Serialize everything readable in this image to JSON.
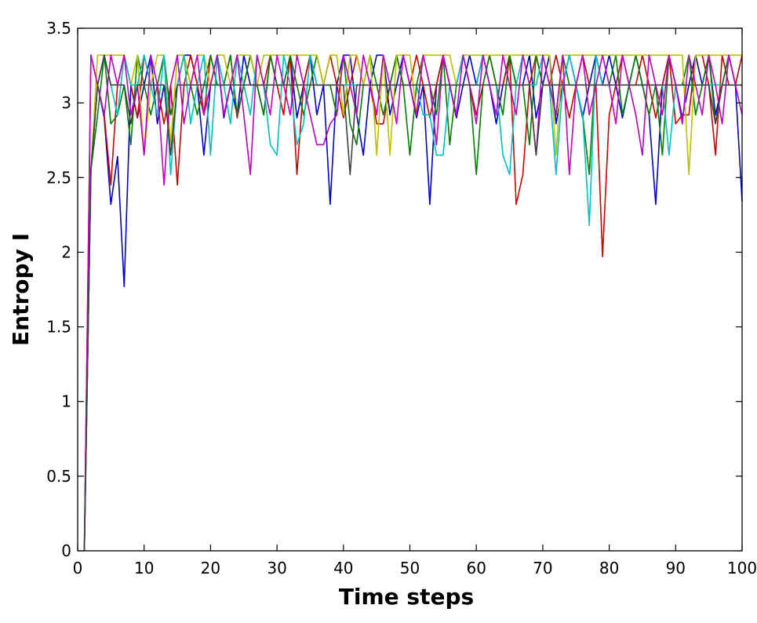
{
  "chart_data": {
    "type": "line",
    "title": "",
    "xlabel": "Time steps",
    "ylabel": "Entropy I",
    "xlim": [
      0,
      100
    ],
    "ylim": [
      0,
      3.5
    ],
    "xticks": [
      "0",
      "10",
      "20",
      "30",
      "40",
      "50",
      "60",
      "70",
      "80",
      "90",
      "100"
    ],
    "yticks": [
      "0",
      "0.5",
      "1",
      "1.5",
      "2",
      "2.5",
      "3",
      "3.5"
    ],
    "grid": false,
    "legend": "none",
    "x": [
      1,
      2,
      3,
      4,
      5,
      6,
      7,
      8,
      9,
      10,
      11,
      12,
      13,
      14,
      15,
      16,
      17,
      18,
      19,
      20,
      21,
      22,
      23,
      24,
      25,
      26,
      27,
      28,
      29,
      30,
      31,
      32,
      33,
      34,
      35,
      36,
      37,
      38,
      39,
      40,
      41,
      42,
      43,
      44,
      45,
      46,
      47,
      48,
      49,
      50,
      51,
      52,
      53,
      54,
      55,
      56,
      57,
      58,
      59,
      60,
      61,
      62,
      63,
      64,
      65,
      66,
      67,
      68,
      69,
      70,
      71,
      72,
      73,
      74,
      75,
      76,
      77,
      78,
      79,
      80,
      81,
      82,
      83,
      84,
      85,
      86,
      87,
      88,
      89,
      90,
      91,
      92,
      93,
      94,
      95,
      96,
      97,
      98,
      99,
      100
    ],
    "series": [
      {
        "color": "#0000cc",
        "values": [
          0,
          2.55,
          3.12,
          2.9,
          2.32,
          2.64,
          1.77,
          3.12,
          2.9,
          3.12,
          3.32,
          2.86,
          3.12,
          2.92,
          3.12,
          3.32,
          3.32,
          3.12,
          2.65,
          3.12,
          3.32,
          2.9,
          3.12,
          2.92,
          3.32,
          3.12,
          3.12,
          2.92,
          3.32,
          3.12,
          3.12,
          3.32,
          2.9,
          3.12,
          3.32,
          2.92,
          3.12,
          2.32,
          3.12,
          3.32,
          3.32,
          2.92,
          2.65,
          3.12,
          3.32,
          3.32,
          2.92,
          3.12,
          3.32,
          3.12,
          2.9,
          3.12,
          2.32,
          3.12,
          3.32,
          3.12,
          2.9,
          3.12,
          3.32,
          3.12,
          3.32,
          3.12,
          2.86,
          3.12,
          3.32,
          3.12,
          3.12,
          3.32,
          2.9,
          3.12,
          3.32,
          2.86,
          3.12,
          3.32,
          3.12,
          2.9,
          3.12,
          3.32,
          3.12,
          3.32,
          3.12,
          2.9,
          3.12,
          3.32,
          3.12,
          2.92,
          2.32,
          3.12,
          3.32,
          3.12,
          2.9,
          3.12,
          3.32,
          3.12,
          3.32,
          2.92,
          3.12,
          3.32,
          3.12,
          2.34
        ]
      },
      {
        "color": "#cc0000",
        "values": [
          0,
          3.32,
          3.12,
          2.92,
          2.45,
          3.12,
          3.32,
          3.12,
          2.9,
          3.32,
          3.12,
          3.12,
          2.86,
          3.12,
          2.45,
          3.12,
          3.32,
          3.12,
          2.92,
          3.32,
          3.12,
          3.12,
          3.32,
          2.9,
          3.12,
          3.32,
          3.12,
          3.12,
          3.32,
          3.12,
          2.92,
          3.32,
          2.52,
          3.12,
          3.32,
          3.12,
          3.12,
          3.32,
          3.12,
          2.9,
          3.12,
          3.32,
          3.12,
          3.12,
          2.86,
          2.86,
          3.12,
          3.32,
          3.12,
          3.12,
          3.32,
          3.12,
          2.9,
          3.12,
          3.32,
          3.12,
          3.12,
          3.32,
          3.12,
          2.92,
          3.12,
          3.32,
          3.12,
          3.12,
          3.32,
          2.32,
          2.52,
          3.12,
          3.32,
          3.12,
          3.12,
          3.32,
          3.12,
          2.9,
          3.12,
          3.32,
          3.12,
          3.12,
          1.97,
          2.92,
          3.12,
          3.32,
          3.12,
          3.12,
          3.32,
          3.12,
          2.9,
          3.12,
          3.32,
          2.86,
          2.92,
          2.92,
          3.32,
          3.32,
          3.12,
          2.65,
          3.32,
          3.12,
          3.12,
          3.32
        ]
      },
      {
        "color": "#007f00",
        "values": [
          0,
          2.55,
          2.92,
          3.32,
          2.86,
          2.92,
          3.12,
          2.72,
          3.32,
          3.12,
          2.92,
          3.12,
          3.32,
          2.92,
          3.12,
          3.32,
          3.12,
          2.92,
          3.12,
          3.32,
          3.12,
          3.12,
          3.32,
          2.92,
          3.12,
          3.32,
          3.12,
          2.92,
          3.32,
          3.12,
          3.12,
          3.32,
          3.12,
          2.92,
          3.12,
          3.32,
          3.12,
          3.12,
          2.92,
          3.32,
          2.86,
          2.72,
          3.12,
          3.32,
          3.12,
          2.92,
          3.12,
          3.32,
          3.12,
          2.65,
          3.12,
          3.32,
          3.12,
          2.92,
          3.32,
          2.72,
          3.12,
          3.32,
          3.12,
          2.52,
          3.12,
          3.32,
          3.12,
          2.92,
          3.32,
          3.12,
          3.12,
          2.72,
          3.32,
          3.12,
          3.12,
          2.92,
          3.32,
          3.12,
          3.12,
          2.92,
          2.52,
          3.32,
          3.12,
          3.12,
          3.32,
          2.92,
          3.12,
          3.32,
          3.12,
          2.92,
          3.12,
          2.65,
          3.32,
          3.12,
          3.12,
          3.32,
          2.92,
          3.12,
          3.32,
          2.86,
          3.12,
          3.32,
          3.12,
          3.12
        ]
      },
      {
        "color": "#bfbf00",
        "values": [
          0,
          2.55,
          3.32,
          3.32,
          3.32,
          3.32,
          3.32,
          3.12,
          3.32,
          2.65,
          3.12,
          3.32,
          3.32,
          2.72,
          3.32,
          3.32,
          3.12,
          3.32,
          3.32,
          3.12,
          3.32,
          3.32,
          3.12,
          3.32,
          3.32,
          3.32,
          3.12,
          3.32,
          3.32,
          3.32,
          3.32,
          3.32,
          3.32,
          3.32,
          3.32,
          3.32,
          3.12,
          3.32,
          3.32,
          2.92,
          3.32,
          3.32,
          3.12,
          3.32,
          2.65,
          3.32,
          2.65,
          3.32,
          3.32,
          3.32,
          2.92,
          3.32,
          3.32,
          3.32,
          3.32,
          3.32,
          3.12,
          3.32,
          3.32,
          3.32,
          3.32,
          3.32,
          3.32,
          3.32,
          3.32,
          3.32,
          3.32,
          3.32,
          3.32,
          3.32,
          3.32,
          2.65,
          3.32,
          3.32,
          3.32,
          3.32,
          3.32,
          3.32,
          3.32,
          3.32,
          3.32,
          3.32,
          3.32,
          3.32,
          3.32,
          3.32,
          3.32,
          3.32,
          3.32,
          3.32,
          3.32,
          2.52,
          3.32,
          3.32,
          3.32,
          3.32,
          3.32,
          3.32,
          3.32,
          3.32
        ]
      },
      {
        "color": "#00bfbf",
        "values": [
          0,
          2.55,
          3.12,
          3.32,
          3.12,
          2.92,
          3.32,
          3.12,
          3.12,
          3.32,
          3.12,
          2.92,
          3.32,
          2.52,
          3.12,
          3.32,
          2.86,
          3.12,
          3.32,
          2.65,
          3.32,
          3.12,
          2.86,
          3.32,
          3.12,
          2.92,
          3.32,
          3.12,
          2.72,
          2.65,
          3.32,
          3.12,
          2.72,
          2.86,
          3.32,
          3.12,
          3.12,
          3.12,
          3.12,
          3.12,
          3.12,
          3.12,
          3.12,
          3.12,
          3.12,
          3.12,
          3.12,
          3.12,
          3.12,
          3.12,
          3.12,
          2.92,
          2.92,
          2.65,
          2.65,
          3.12,
          3.12,
          3.32,
          3.12,
          3.12,
          3.32,
          3.12,
          3.12,
          2.65,
          2.52,
          3.12,
          3.32,
          3.12,
          3.12,
          3.32,
          3.12,
          2.52,
          3.12,
          3.32,
          3.12,
          2.92,
          2.18,
          3.32,
          3.12,
          3.12,
          3.12,
          3.12,
          3.12,
          3.12,
          3.12,
          3.12,
          3.12,
          3.12,
          2.65,
          3.12,
          3.12,
          3.12,
          3.12,
          3.12,
          3.12,
          3.12,
          3.12,
          3.12,
          3.12,
          3.12
        ]
      },
      {
        "color": "#bf00bf",
        "values": [
          0,
          3.32,
          3.12,
          2.92,
          3.32,
          3.12,
          3.32,
          2.92,
          3.12,
          2.65,
          3.32,
          3.12,
          2.45,
          3.12,
          3.32,
          2.86,
          3.12,
          3.32,
          2.92,
          3.12,
          3.32,
          2.92,
          3.12,
          3.32,
          2.92,
          2.52,
          3.32,
          3.12,
          2.92,
          3.32,
          3.12,
          2.92,
          3.32,
          3.12,
          2.92,
          2.72,
          2.72,
          2.86,
          2.92,
          3.32,
          3.12,
          2.92,
          3.32,
          3.12,
          2.92,
          3.32,
          3.12,
          2.86,
          3.32,
          3.12,
          2.92,
          3.32,
          3.12,
          2.72,
          3.32,
          3.12,
          2.92,
          3.32,
          3.12,
          2.86,
          3.32,
          3.12,
          2.92,
          3.32,
          3.12,
          2.92,
          3.32,
          3.12,
          2.65,
          3.32,
          3.12,
          2.92,
          3.32,
          2.52,
          3.12,
          3.32,
          2.92,
          3.12,
          3.32,
          3.12,
          2.86,
          3.32,
          3.12,
          2.92,
          2.65,
          3.32,
          3.12,
          2.92,
          3.32,
          3.12,
          2.86,
          3.32,
          3.12,
          2.92,
          3.32,
          3.12,
          2.86,
          3.32,
          3.12,
          2.92
        ]
      },
      {
        "color": "#404040",
        "values": [
          0,
          2.55,
          3.12,
          3.32,
          3.12,
          3.12,
          3.12,
          2.86,
          3.12,
          3.12,
          3.12,
          3.12,
          3.12,
          2.65,
          3.12,
          3.12,
          3.12,
          3.12,
          3.12,
          3.12,
          3.12,
          3.12,
          3.12,
          3.12,
          3.12,
          3.12,
          3.12,
          3.12,
          3.12,
          3.12,
          3.12,
          3.12,
          3.12,
          3.12,
          3.12,
          3.12,
          3.12,
          3.12,
          3.12,
          3.12,
          2.52,
          3.12,
          3.12,
          3.12,
          3.12,
          3.12,
          3.12,
          3.12,
          3.12,
          3.12,
          3.12,
          3.12,
          3.12,
          3.12,
          3.12,
          3.12,
          3.12,
          3.12,
          3.12,
          3.12,
          3.12,
          3.12,
          3.12,
          3.12,
          3.12,
          3.12,
          3.12,
          3.12,
          2.65,
          3.12,
          3.12,
          3.12,
          3.12,
          3.12,
          3.12,
          3.12,
          3.12,
          3.12,
          3.12,
          3.12,
          3.12,
          3.12,
          3.12,
          3.12,
          3.12,
          3.12,
          3.12,
          3.12,
          3.12,
          3.12,
          3.12,
          3.12,
          3.12,
          3.12,
          3.12,
          2.86,
          3.12,
          3.12,
          3.12,
          3.12
        ]
      }
    ]
  }
}
